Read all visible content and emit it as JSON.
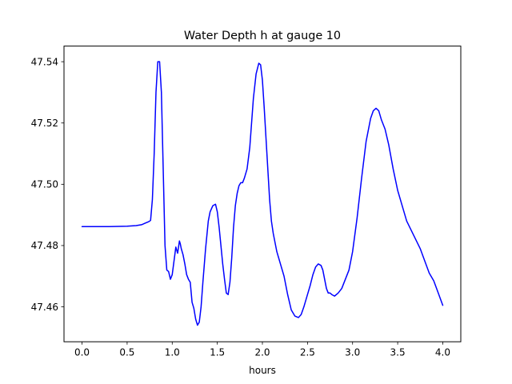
{
  "chart_data": {
    "type": "line",
    "title": "Water Depth h at gauge 10",
    "xlabel": "hours",
    "ylabel": "",
    "xlim": [
      -0.2,
      4.2
    ],
    "ylim": [
      47.4486,
      47.5451
    ],
    "xticks": [
      0.0,
      0.5,
      1.0,
      1.5,
      2.0,
      2.5,
      3.0,
      3.5,
      4.0
    ],
    "xtick_labels": [
      "0.0",
      "0.5",
      "1.0",
      "1.5",
      "2.0",
      "2.5",
      "3.0",
      "3.5",
      "4.0"
    ],
    "yticks": [
      47.46,
      47.48,
      47.5,
      47.52,
      47.54
    ],
    "ytick_labels": [
      "47.46",
      "47.48",
      "47.50",
      "47.52",
      "47.54"
    ],
    "grid": false,
    "series": [
      {
        "name": "",
        "color": "#0000ff",
        "x": [
          0.0,
          0.3,
          0.5,
          0.6,
          0.66,
          0.7,
          0.74,
          0.76,
          0.78,
          0.8,
          0.82,
          0.84,
          0.86,
          0.88,
          0.9,
          0.92,
          0.94,
          0.96,
          0.98,
          1.0,
          1.02,
          1.04,
          1.06,
          1.08,
          1.09,
          1.1,
          1.12,
          1.14,
          1.16,
          1.18,
          1.2,
          1.22,
          1.24,
          1.26,
          1.28,
          1.3,
          1.32,
          1.34,
          1.37,
          1.4,
          1.42,
          1.45,
          1.48,
          1.5,
          1.52,
          1.54,
          1.56,
          1.58,
          1.6,
          1.62,
          1.64,
          1.66,
          1.68,
          1.7,
          1.72,
          1.74,
          1.76,
          1.78,
          1.8,
          1.83,
          1.86,
          1.9,
          1.93,
          1.96,
          1.98,
          2.0,
          2.02,
          2.04,
          2.06,
          2.08,
          2.1,
          2.12,
          2.14,
          2.16,
          2.18,
          2.2,
          2.24,
          2.28,
          2.32,
          2.36,
          2.4,
          2.43,
          2.46,
          2.5,
          2.53,
          2.56,
          2.59,
          2.62,
          2.65,
          2.67,
          2.69,
          2.71,
          2.73,
          2.75,
          2.77,
          2.8,
          2.84,
          2.88,
          2.92,
          2.96,
          3.0,
          3.05,
          3.1,
          3.15,
          3.2,
          3.23,
          3.26,
          3.29,
          3.32,
          3.36,
          3.4,
          3.45,
          3.5,
          3.55,
          3.6,
          3.65,
          3.7,
          3.75,
          3.8,
          3.85,
          3.9,
          3.95,
          4.0
        ],
        "y": [
          47.4862,
          47.4862,
          47.4863,
          47.4865,
          47.4868,
          47.4873,
          47.4878,
          47.4882,
          47.495,
          47.51,
          47.53,
          47.54,
          47.54,
          47.53,
          47.505,
          47.48,
          47.472,
          47.4715,
          47.469,
          47.4705,
          47.475,
          47.4795,
          47.4775,
          47.4815,
          47.4805,
          47.479,
          47.477,
          47.474,
          47.4705,
          47.469,
          47.468,
          47.4615,
          47.4595,
          47.456,
          47.454,
          47.455,
          47.46,
          47.468,
          47.479,
          47.488,
          47.491,
          47.493,
          47.4935,
          47.491,
          47.486,
          47.48,
          47.474,
          47.469,
          47.4645,
          47.464,
          47.468,
          47.476,
          47.486,
          47.493,
          47.497,
          47.4995,
          47.5005,
          47.5005,
          47.502,
          47.505,
          47.512,
          47.528,
          47.536,
          47.5395,
          47.539,
          47.534,
          47.525,
          47.515,
          47.505,
          47.495,
          47.488,
          47.484,
          47.481,
          47.478,
          47.476,
          47.474,
          47.47,
          47.464,
          47.459,
          47.457,
          47.4565,
          47.4575,
          47.46,
          47.464,
          47.467,
          47.4705,
          47.473,
          47.474,
          47.4735,
          47.472,
          47.469,
          47.466,
          47.4645,
          47.4645,
          47.464,
          47.4635,
          47.4645,
          47.466,
          47.469,
          47.472,
          47.478,
          47.489,
          47.502,
          47.514,
          47.5215,
          47.524,
          47.5248,
          47.524,
          47.521,
          47.518,
          47.513,
          47.505,
          47.498,
          47.493,
          47.488,
          47.485,
          47.482,
          47.479,
          47.475,
          47.471,
          47.4685,
          47.4645,
          47.4605
        ]
      }
    ]
  }
}
